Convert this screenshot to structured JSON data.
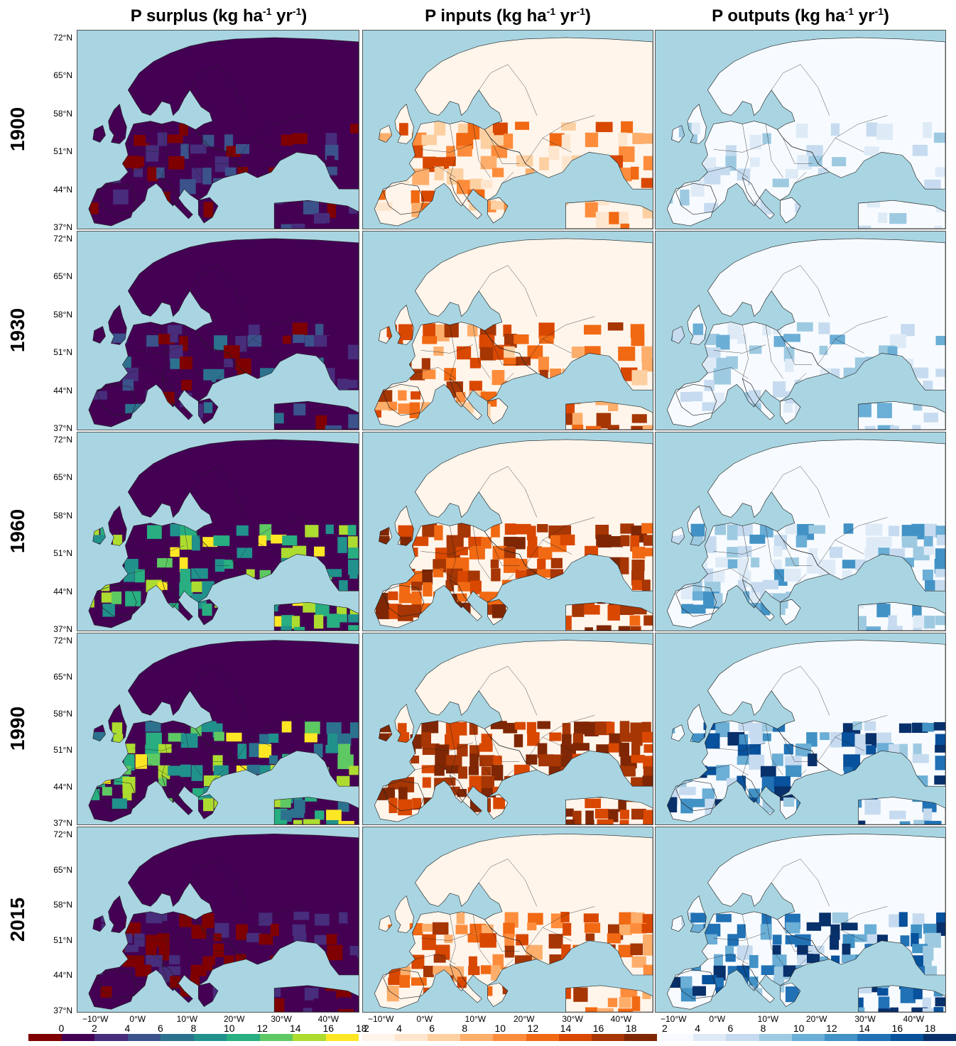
{
  "columns": [
    {
      "title_main": "P surplus (kg ha",
      "sup1": "-1",
      "mid": " yr",
      "sup2": "-1",
      "end": ")",
      "scheme": "surplus"
    },
    {
      "title_main": "P inputs (kg ha",
      "sup1": "-1",
      "mid": " yr",
      "sup2": "-1",
      "end": ")",
      "scheme": "inputs"
    },
    {
      "title_main": "P outputs (kg ha",
      "sup1": "-1",
      "mid": " yr",
      "sup2": "-1",
      "end": ")",
      "scheme": "outputs"
    }
  ],
  "rows": [
    "1900",
    "1930",
    "1960",
    "1990",
    "2015"
  ],
  "lat_ticks": [
    "72°N",
    "65°N",
    "58°N",
    "51°N",
    "44°N",
    "37°N"
  ],
  "lon_ticks": [
    "−10°W",
    "0°W",
    "10°W",
    "20°W",
    "30°W",
    "40°W"
  ],
  "colorbars": {
    "surplus": {
      "labels": [
        "0",
        "2",
        "4",
        "6",
        "8",
        "10",
        "12",
        "14",
        "16",
        "18"
      ],
      "colors": [
        "#7f0000",
        "#440154",
        "#472d7b",
        "#3b528b",
        "#2c728e",
        "#21918c",
        "#28ae80",
        "#5ec962",
        "#addc30",
        "#fde725"
      ]
    },
    "inputs": {
      "labels": [
        "2",
        "4",
        "6",
        "8",
        "10",
        "12",
        "14",
        "16",
        "18"
      ],
      "colors": [
        "#fff5eb",
        "#fee6ce",
        "#fdd0a2",
        "#fdae6b",
        "#fd8d3c",
        "#f16913",
        "#d94801",
        "#a63603",
        "#7f2704"
      ]
    },
    "outputs": {
      "labels": [
        "2",
        "4",
        "6",
        "8",
        "10",
        "12",
        "14",
        "16",
        "18"
      ],
      "colors": [
        "#f7fbff",
        "#deebf7",
        "#c6dbef",
        "#9ecae1",
        "#6baed6",
        "#4292c6",
        "#2171b5",
        "#08519c",
        "#08306b"
      ]
    }
  },
  "colors": {
    "sea": "#a9d5e2",
    "border": "#222222"
  }
}
